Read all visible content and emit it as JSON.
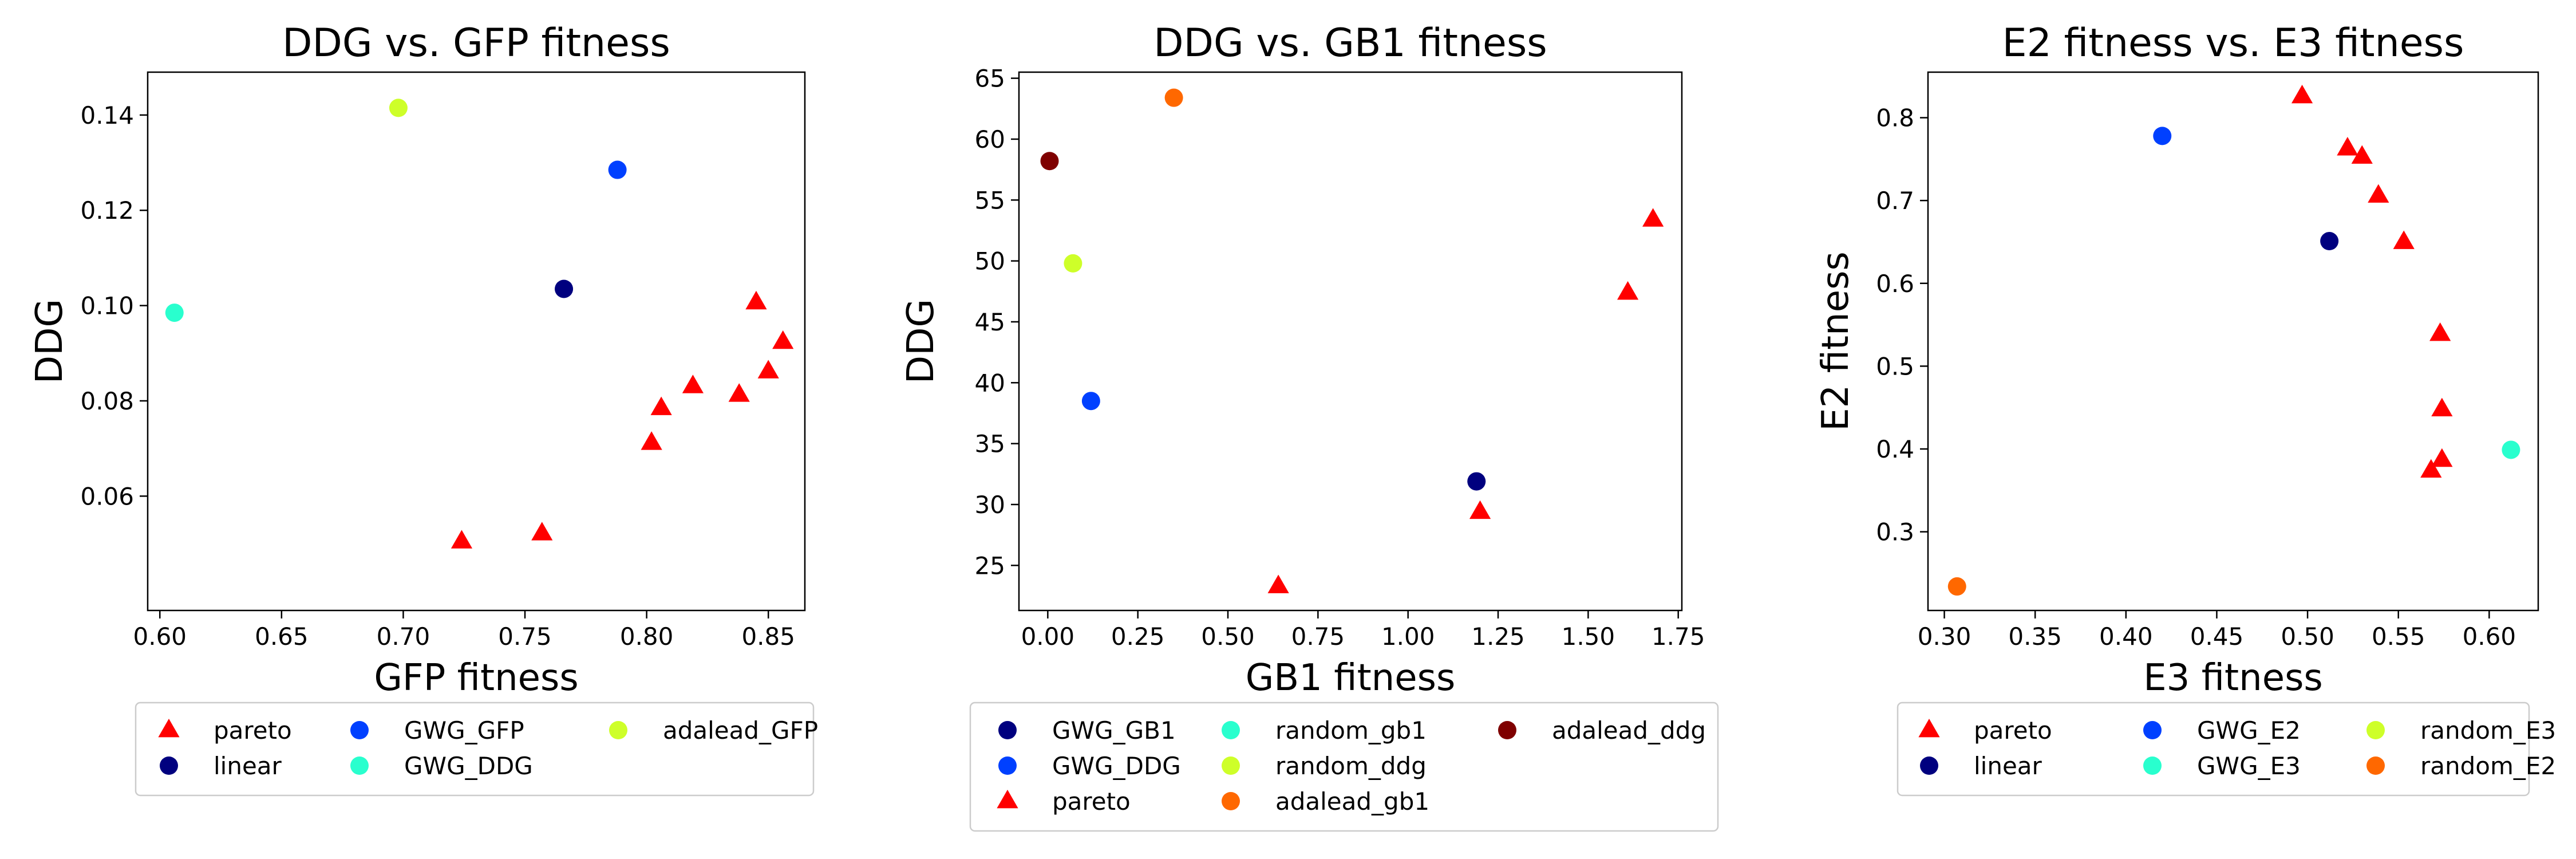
{
  "colors": {
    "pareto": "#ff0000",
    "navy": "#00007f",
    "blue": "#0040ff",
    "cyan": "#29ffce",
    "yellowgreen": "#ceff29",
    "orange": "#ff6800",
    "darkred": "#7f0000"
  },
  "chart_data": [
    {
      "type": "scatter",
      "title": "DDG vs. GFP fitness",
      "xlabel": "GFP fitness",
      "ylabel": "DDG",
      "xlim": [
        0.595,
        0.865
      ],
      "ylim": [
        0.036,
        0.149
      ],
      "xticks": [
        "0.60",
        "0.65",
        "0.70",
        "0.75",
        "0.80",
        "0.85"
      ],
      "yticks": [
        "0.06",
        "0.08",
        "0.10",
        "0.12",
        "0.14"
      ],
      "legend_cols": 3,
      "series": [
        {
          "name": "pareto",
          "marker": "triangle",
          "color": "#ff0000",
          "x": [
            0.724,
            0.757,
            0.802,
            0.806,
            0.819,
            0.838,
            0.845,
            0.85,
            0.856
          ],
          "y": [
            0.0505,
            0.0522,
            0.0712,
            0.0785,
            0.0831,
            0.0813,
            0.1007,
            0.0862,
            0.0924
          ]
        },
        {
          "name": "linear",
          "marker": "circle",
          "color": "#00007f",
          "x": [
            0.766
          ],
          "y": [
            0.1035
          ]
        },
        {
          "name": "GWG_GFP",
          "marker": "circle",
          "color": "#0040ff",
          "x": [
            0.788
          ],
          "y": [
            0.1285
          ]
        },
        {
          "name": "GWG_DDG",
          "marker": "circle",
          "color": "#29ffce",
          "x": [
            0.606
          ],
          "y": [
            0.0985
          ]
        },
        {
          "name": "adalead_GFP",
          "marker": "circle",
          "color": "#ceff29",
          "x": [
            0.698
          ],
          "y": [
            0.1415
          ]
        }
      ]
    },
    {
      "type": "scatter",
      "title": "DDG vs. GB1 fitness",
      "xlabel": "GB1 fitness",
      "ylabel": "DDG",
      "xlim": [
        -0.08,
        1.76
      ],
      "ylim": [
        21.3,
        65.5
      ],
      "xticks": [
        "0.00",
        "0.25",
        "0.50",
        "0.75",
        "1.00",
        "1.25",
        "1.50",
        "1.75"
      ],
      "yticks": [
        "25",
        "30",
        "35",
        "40",
        "45",
        "50",
        "55",
        "60",
        "65"
      ],
      "legend_cols": 3,
      "series": [
        {
          "name": "GWG_GB1",
          "marker": "circle",
          "color": "#00007f",
          "x": [
            1.19
          ],
          "y": [
            31.9
          ]
        },
        {
          "name": "GWG_DDG",
          "marker": "circle",
          "color": "#0040ff",
          "x": [
            0.12
          ],
          "y": [
            38.5
          ]
        },
        {
          "name": "pareto",
          "marker": "triangle",
          "color": "#ff0000",
          "x": [
            0.64,
            1.2,
            1.61,
            1.68
          ],
          "y": [
            23.3,
            29.4,
            47.4,
            53.4
          ]
        },
        {
          "name": "random_gb1",
          "marker": "circle",
          "color": "#29ffce",
          "x": [],
          "y": []
        },
        {
          "name": "random_ddg",
          "marker": "circle",
          "color": "#ceff29",
          "x": [
            0.07
          ],
          "y": [
            49.8
          ]
        },
        {
          "name": "adalead_gb1",
          "marker": "circle",
          "color": "#ff6800",
          "x": [
            0.35
          ],
          "y": [
            63.4
          ]
        },
        {
          "name": "adalead_ddg",
          "marker": "circle",
          "color": "#7f0000",
          "x": [
            0.005
          ],
          "y": [
            58.2
          ]
        }
      ]
    },
    {
      "type": "scatter",
      "title": "E2 fitness vs. E3 fitness",
      "xlabel": "E3 fitness",
      "ylabel": "E2 fitness",
      "xlim": [
        0.291,
        0.627
      ],
      "ylim": [
        0.205,
        0.855
      ],
      "xticks": [
        "0.30",
        "0.35",
        "0.40",
        "0.45",
        "0.50",
        "0.55",
        "0.60"
      ],
      "yticks": [
        "0.3",
        "0.4",
        "0.5",
        "0.6",
        "0.7",
        "0.8"
      ],
      "legend_cols": 3,
      "series": [
        {
          "name": "pareto",
          "marker": "triangle",
          "color": "#ff0000",
          "x": [
            0.497,
            0.522,
            0.53,
            0.539,
            0.553,
            0.573,
            0.574,
            0.574,
            0.568
          ],
          "y": [
            0.826,
            0.763,
            0.753,
            0.706,
            0.65,
            0.539,
            0.448,
            0.387,
            0.374
          ]
        },
        {
          "name": "linear",
          "marker": "circle",
          "color": "#00007f",
          "x": [
            0.512
          ],
          "y": [
            0.651
          ]
        },
        {
          "name": "GWG_E2",
          "marker": "circle",
          "color": "#0040ff",
          "x": [
            0.42
          ],
          "y": [
            0.778
          ]
        },
        {
          "name": "GWG_E3",
          "marker": "circle",
          "color": "#29ffce",
          "x": [
            0.612
          ],
          "y": [
            0.399
          ]
        },
        {
          "name": "random_E3",
          "marker": "circle",
          "color": "#ceff29",
          "x": [],
          "y": []
        },
        {
          "name": "random_E2",
          "marker": "circle",
          "color": "#ff6800",
          "x": [
            0.307
          ],
          "y": [
            0.234
          ]
        }
      ]
    }
  ]
}
